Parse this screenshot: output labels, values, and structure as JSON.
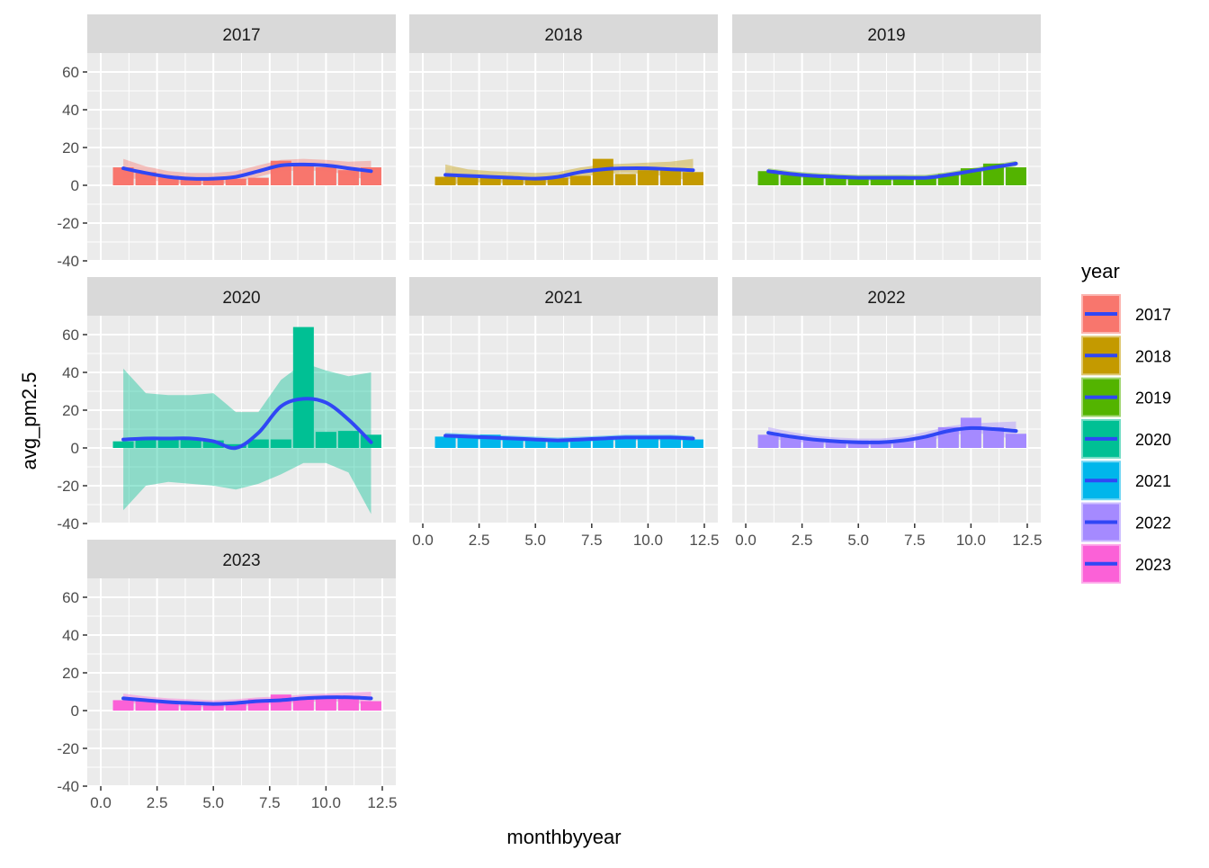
{
  "chart_data": {
    "type": "bar",
    "facet_by": "year",
    "xlabel": "monthbyyear",
    "ylabel": "avg_pm2.5",
    "xlim": [
      0,
      12.5
    ],
    "ylim": [
      -40,
      70
    ],
    "x_ticks": [
      "0.0",
      "2.5",
      "5.0",
      "7.5",
      "10.0",
      "12.5"
    ],
    "y_ticks": [
      "-40",
      "-20",
      "0",
      "20",
      "40",
      "60"
    ],
    "grid": true,
    "legend": {
      "title": "year",
      "position": "right"
    },
    "smooth_color": "#3047F5",
    "x": [
      1,
      2,
      3,
      4,
      5,
      6,
      7,
      8,
      9,
      10,
      11,
      12
    ],
    "facets": [
      {
        "label": "2017",
        "color": "#F8766D",
        "values": [
          9.5,
          7,
          5,
          4,
          3.5,
          3.5,
          4,
          13,
          11,
          9.5,
          8,
          9.5
        ],
        "smooth": [
          9,
          6.5,
          4.5,
          3.5,
          3.5,
          4.5,
          7.5,
          10.5,
          11,
          10.5,
          9,
          7.5
        ],
        "smooth_upper": [
          14,
          10,
          7.5,
          6.5,
          6.5,
          7.5,
          10.5,
          13.5,
          14,
          13.5,
          12.5,
          13
        ],
        "smooth_lower": [
          4,
          3,
          1.5,
          0.5,
          0.5,
          1.5,
          4.5,
          7.5,
          8,
          7.5,
          5.5,
          2
        ]
      },
      {
        "label": "2018",
        "color": "#C49A00",
        "values": [
          4.5,
          5,
          5,
          3.5,
          3.5,
          4,
          5,
          14,
          6,
          8,
          8,
          7
        ],
        "smooth": [
          5.5,
          5,
          4.5,
          4,
          3.5,
          4.5,
          7,
          8.5,
          9,
          9,
          8.5,
          8
        ],
        "smooth_upper": [
          11,
          8.5,
          7.5,
          7,
          6.5,
          7,
          9.5,
          11,
          11.5,
          12,
          12.5,
          14
        ],
        "smooth_lower": [
          0,
          1.5,
          1.5,
          1,
          0.5,
          2,
          4.5,
          6,
          6.5,
          6,
          4.5,
          2
        ]
      },
      {
        "label": "2019",
        "color": "#53B400",
        "values": [
          7.5,
          5.5,
          5,
          4,
          4,
          4,
          4,
          4,
          6,
          9,
          11.5,
          9.5
        ],
        "smooth": [
          7.5,
          6,
          5,
          4.5,
          4,
          4,
          4,
          4,
          5.5,
          7.5,
          9.5,
          11.5
        ],
        "smooth_upper": [
          9,
          7.5,
          6.5,
          6,
          5.5,
          5.5,
          5.5,
          5.5,
          7,
          9,
          11,
          13
        ],
        "smooth_lower": [
          6,
          4.5,
          3.5,
          3,
          2.5,
          2.5,
          2.5,
          2.5,
          4,
          6,
          8,
          10
        ]
      },
      {
        "label": "2020",
        "color": "#00C094",
        "values": [
          3.5,
          5,
          5.5,
          5,
          4,
          2,
          4.5,
          4.5,
          64,
          8.5,
          9,
          7
        ],
        "smooth": [
          4.5,
          5,
          5,
          5,
          3.5,
          0,
          8,
          22,
          26,
          24,
          15,
          3
        ],
        "smooth_upper": [
          42,
          29,
          28,
          28,
          29,
          19,
          19,
          36,
          45,
          41,
          38,
          40
        ],
        "smooth_lower": [
          -33,
          -20,
          -18,
          -19,
          -20,
          -22,
          -19,
          -14,
          -8,
          -8,
          -13,
          -35
        ]
      },
      {
        "label": "2021",
        "color": "#00B6EB",
        "values": [
          6,
          6,
          7,
          5,
          4,
          4,
          4,
          4.5,
          5,
          5,
          5,
          4.5
        ],
        "smooth": [
          6.5,
          6,
          5.5,
          5,
          4.5,
          4,
          4.5,
          5,
          5.5,
          5.5,
          5.5,
          5
        ],
        "smooth_upper": [
          8,
          7.5,
          7,
          6.5,
          6,
          5.5,
          6,
          6.5,
          7,
          7,
          7,
          6.5
        ],
        "smooth_lower": [
          5,
          4.5,
          4,
          3.5,
          3,
          2.5,
          3,
          3.5,
          4,
          4,
          4,
          3.5
        ]
      },
      {
        "label": "2022",
        "color": "#A58AFF",
        "values": [
          7,
          6,
          5,
          4,
          4,
          4,
          4,
          6,
          11,
          16,
          11,
          7.5
        ],
        "smooth": [
          8,
          6,
          4.5,
          3.5,
          3,
          3,
          4,
          6,
          9,
          10.5,
          10,
          9
        ],
        "smooth_upper": [
          11,
          8.5,
          6.5,
          5.5,
          5,
          5,
          6,
          8.5,
          11.5,
          13,
          13.5,
          14
        ],
        "smooth_lower": [
          5,
          3.5,
          2.5,
          1.5,
          1,
          1,
          2,
          3.5,
          6.5,
          8,
          7,
          4
        ]
      },
      {
        "label": "2023",
        "color": "#FB61D7",
        "values": [
          5.5,
          6,
          5,
          4,
          4,
          4,
          6,
          8.5,
          6.5,
          7,
          6.5,
          5
        ],
        "smooth": [
          6.5,
          5.5,
          4.5,
          4,
          3.5,
          4,
          5,
          5.5,
          6.5,
          7,
          7,
          6.5
        ],
        "smooth_upper": [
          9,
          7.5,
          6.5,
          6,
          5.5,
          6,
          7,
          7.5,
          8.5,
          9,
          9.5,
          10
        ],
        "smooth_lower": [
          4,
          3.5,
          2.5,
          2,
          1.5,
          2,
          3,
          3.5,
          4.5,
          5,
          4.5,
          3
        ]
      }
    ]
  }
}
